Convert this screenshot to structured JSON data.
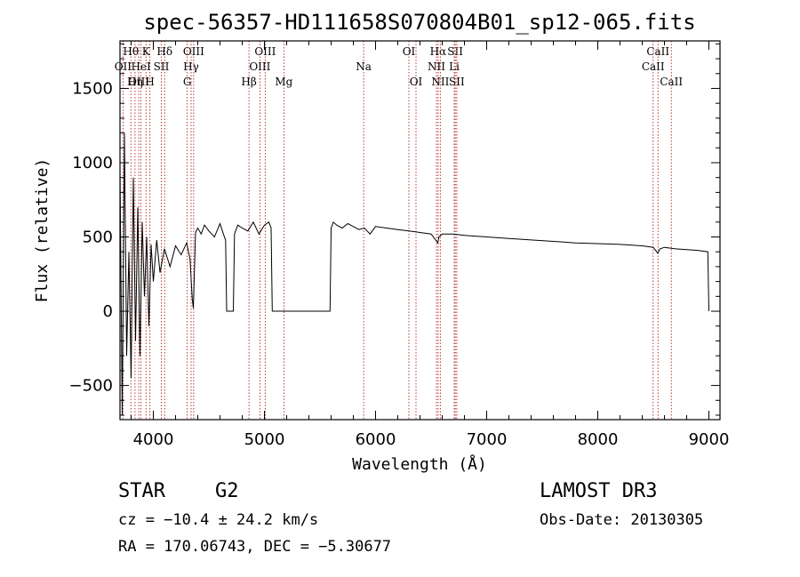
{
  "chart_data": {
    "type": "line",
    "title": "spec-56357-HD111658S070804B01_sp12-065.fits",
    "xlabel": "Wavelength (Å)",
    "ylabel": "Flux (relative)",
    "xlim": [
      3700,
      9100
    ],
    "ylim": [
      -730,
      1820
    ],
    "xticks": [
      4000,
      5000,
      6000,
      7000,
      8000,
      9000
    ],
    "xtick_labels": [
      "4000",
      "5000",
      "6000",
      "7000",
      "8000",
      "9000"
    ],
    "yticks": [
      -500,
      0,
      500,
      1000,
      1500
    ],
    "ytick_labels": [
      "−500",
      "0",
      "500",
      "1000",
      "1500"
    ],
    "lines": [
      {
        "name": "Hθ",
        "x": 3798,
        "row": 0
      },
      {
        "name": "OII",
        "x": 3727,
        "row": 1
      },
      {
        "name": "OIII",
        "x": 3869,
        "row": 2
      },
      {
        "name": "Hη",
        "x": 3835,
        "row": 2
      },
      {
        "name": "K",
        "x": 3934,
        "row": 0
      },
      {
        "name": "HeI",
        "x": 3889,
        "row": 1
      },
      {
        "name": "H",
        "x": 3969,
        "row": 2
      },
      {
        "name": "SII",
        "x": 4072,
        "row": 1
      },
      {
        "name": "Hδ",
        "x": 4102,
        "row": 0
      },
      {
        "name": "OIII",
        "x": 4363,
        "row": 0
      },
      {
        "name": "Hγ",
        "x": 4340,
        "row": 1
      },
      {
        "name": "G",
        "x": 4305,
        "row": 2
      },
      {
        "name": "OIII",
        "x": 5007,
        "row": 0
      },
      {
        "name": "OIII",
        "x": 4959,
        "row": 1
      },
      {
        "name": "Hβ",
        "x": 4861,
        "row": 2
      },
      {
        "name": "Mg",
        "x": 5175,
        "row": 2
      },
      {
        "name": "Na",
        "x": 5893,
        "row": 1
      },
      {
        "name": "OI",
        "x": 6300,
        "row": 0
      },
      {
        "name": "OI",
        "x": 6364,
        "row": 2
      },
      {
        "name": "Hα",
        "x": 6563,
        "row": 0
      },
      {
        "name": "SII",
        "x": 6717,
        "row": 0
      },
      {
        "name": "NII",
        "x": 6548,
        "row": 1
      },
      {
        "name": "Li",
        "x": 6708,
        "row": 1
      },
      {
        "name": "NII",
        "x": 6583,
        "row": 2
      },
      {
        "name": "SII",
        "x": 6731,
        "row": 2
      },
      {
        "name": "CaII",
        "x": 8542,
        "row": 0
      },
      {
        "name": "CaII",
        "x": 8498,
        "row": 1
      },
      {
        "name": "CaII",
        "x": 8662,
        "row": 2
      }
    ],
    "series": [
      {
        "name": "flux",
        "x": [
          3700,
          3720,
          3740,
          3760,
          3780,
          3800,
          3820,
          3840,
          3860,
          3880,
          3900,
          3920,
          3940,
          3960,
          3980,
          4000,
          4030,
          4060,
          4100,
          4150,
          4200,
          4250,
          4300,
          4330,
          4350,
          4360,
          4380,
          4400,
          4430,
          4460,
          4500,
          4550,
          4600,
          4630,
          4650,
          4660,
          4700,
          4720,
          4730,
          4760,
          4800,
          4850,
          4900,
          4950,
          5000,
          5040,
          5060,
          5070,
          5200,
          5400,
          5590,
          5600,
          5620,
          5650,
          5700,
          5750,
          5800,
          5850,
          5900,
          5950,
          6000,
          6100,
          6200,
          6300,
          6400,
          6500,
          6560,
          6570,
          6600,
          6700,
          6800,
          7000,
          7200,
          7400,
          7600,
          7800,
          8000,
          8200,
          8400,
          8500,
          8540,
          8560,
          8600,
          8700,
          8800,
          8900,
          8990,
          9000
        ],
        "y": [
          950,
          -700,
          1200,
          -300,
          400,
          -450,
          900,
          -200,
          700,
          -300,
          600,
          100,
          500,
          -100,
          450,
          200,
          480,
          260,
          420,
          300,
          440,
          380,
          460,
          350,
          80,
          20,
          530,
          560,
          520,
          580,
          540,
          500,
          590,
          520,
          480,
          0,
          0,
          0,
          520,
          580,
          560,
          540,
          600,
          520,
          580,
          600,
          560,
          0,
          0,
          0,
          0,
          560,
          600,
          580,
          560,
          590,
          570,
          550,
          560,
          520,
          570,
          560,
          550,
          540,
          530,
          520,
          460,
          500,
          520,
          520,
          510,
          500,
          490,
          480,
          470,
          460,
          455,
          450,
          440,
          430,
          390,
          420,
          430,
          420,
          415,
          410,
          400,
          0
        ]
      }
    ]
  },
  "info": {
    "object_class": "STAR",
    "subclass": "G2",
    "survey": "LAMOST DR3",
    "redshift": "cz = −10.4 ± 24.2 km/s",
    "obs_date": "Obs-Date: 20130305",
    "coords": "RA = 170.06743, DEC =  −5.30677"
  }
}
